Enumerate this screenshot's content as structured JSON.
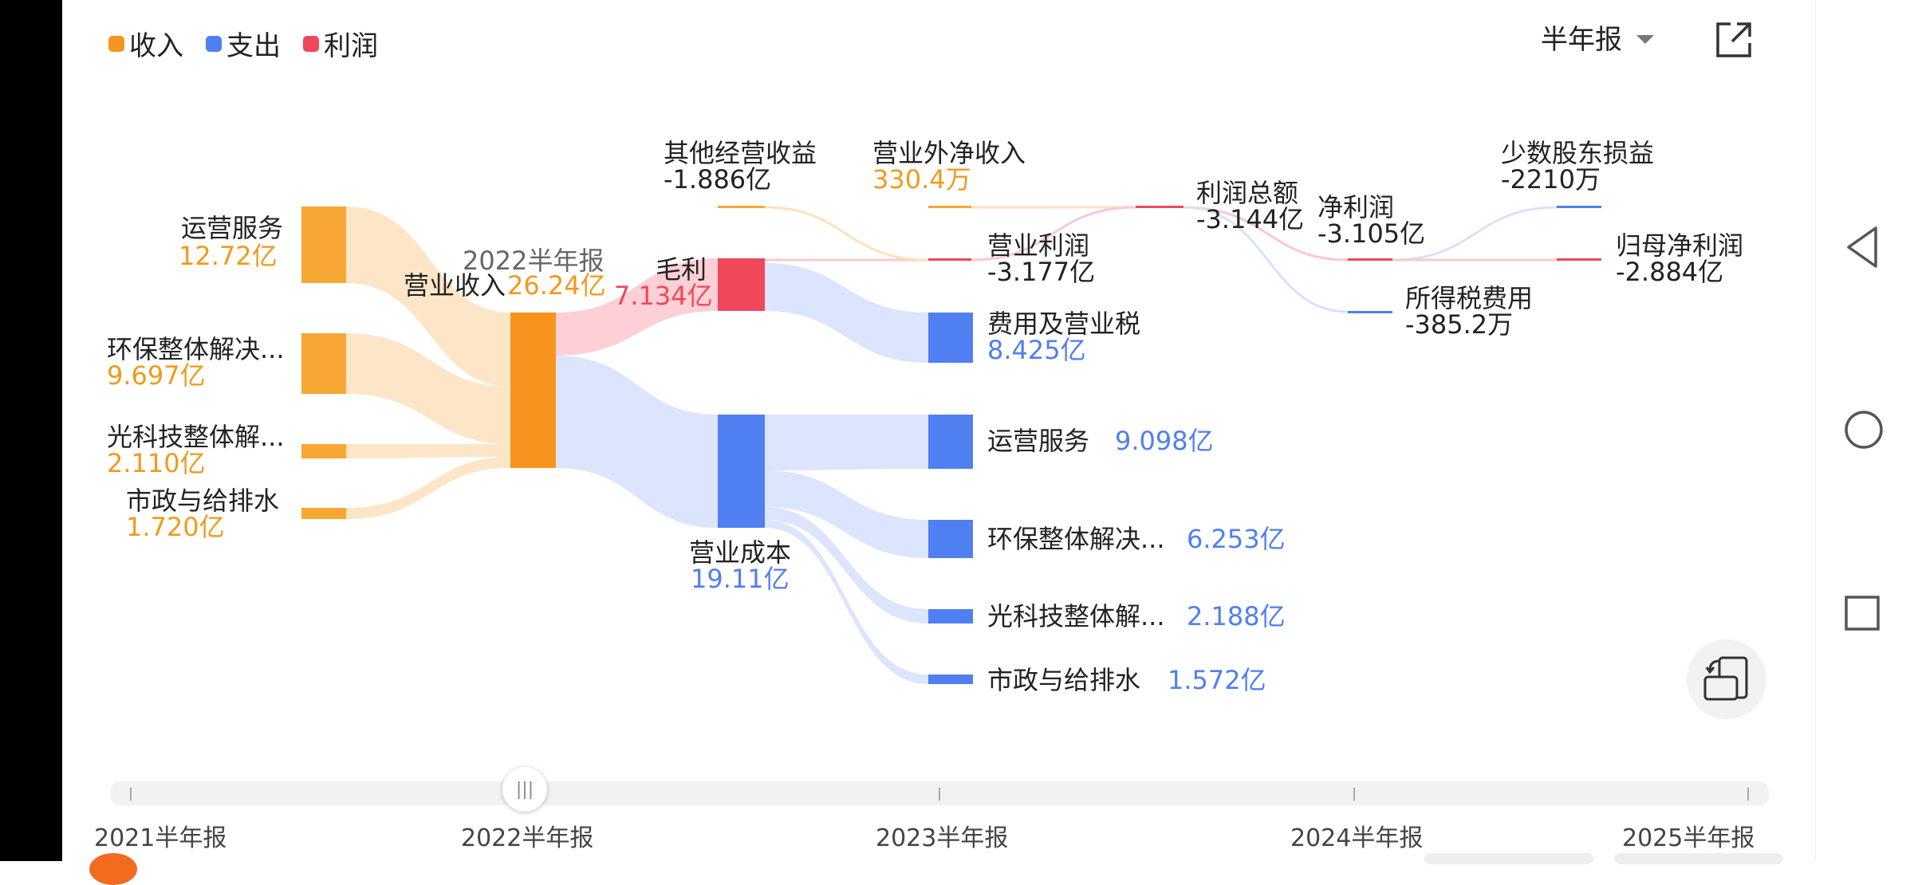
{
  "legend": [
    {
      "label": "收入",
      "color": "#f7941d"
    },
    {
      "label": "支出",
      "color": "#4f7ff0"
    },
    {
      "label": "利润",
      "color": "#f0485a"
    }
  ],
  "period_select": {
    "value": "半年报"
  },
  "colors": {
    "income": "#f7a733",
    "expense": "#4f7ff0",
    "profit": "#f0485a",
    "income_flow": "#fde2bd",
    "expense_flow": "#d8e2fb",
    "profit_flow": "#fbc8cf"
  },
  "center": {
    "period": "2022半年报",
    "revenue_label": "营业收入",
    "revenue_value": "26.24亿"
  },
  "sources": [
    {
      "label": "运营服务",
      "value": "12.72亿"
    },
    {
      "label": "环保整体解决...",
      "value": "9.697亿"
    },
    {
      "label": "光科技整体解...",
      "value": "2.110亿"
    },
    {
      "label": "市政与给排水",
      "value": "1.720亿"
    }
  ],
  "gross_profit": {
    "label": "毛利",
    "value": "7.134亿"
  },
  "cost": {
    "label": "营业成本",
    "value": "19.11亿"
  },
  "other_income": {
    "label": "其他经营收益",
    "value": "-1.886亿"
  },
  "non_op_income": {
    "label": "营业外净收入",
    "value": "330.4万"
  },
  "op_profit": {
    "label": "营业利润",
    "value": "-3.177亿"
  },
  "expenses_tax": {
    "label": "费用及营业税",
    "value": "8.425亿"
  },
  "cost_breakdown": [
    {
      "label": "运营服务",
      "value": "9.098亿"
    },
    {
      "label": "环保整体解决...",
      "value": "6.253亿"
    },
    {
      "label": "光科技整体解...",
      "value": "2.188亿"
    },
    {
      "label": "市政与给排水",
      "value": "1.572亿"
    }
  ],
  "total_profit": {
    "label": "利润总额",
    "value": "-3.144亿"
  },
  "net_profit": {
    "label": "净利润",
    "value": "-3.105亿"
  },
  "income_tax": {
    "label": "所得税费用",
    "value": "-385.2万"
  },
  "minority": {
    "label": "少数股东损益",
    "value": "-2210万"
  },
  "parent_net": {
    "label": "归母净利润",
    "value": "-2.884亿"
  },
  "timeline": {
    "labels": [
      "2021半年报",
      "2022半年报",
      "2023半年报",
      "2024半年报",
      "2025半年报"
    ],
    "selected": "2022半年报",
    "handle_glyph": "|||"
  },
  "icons": {
    "external": "external-link-icon",
    "rotate": "rotate-screen-icon",
    "back": "nav-back-icon",
    "home": "nav-home-icon",
    "recents": "nav-recents-icon",
    "dropdown": "chevron-down-icon"
  }
}
